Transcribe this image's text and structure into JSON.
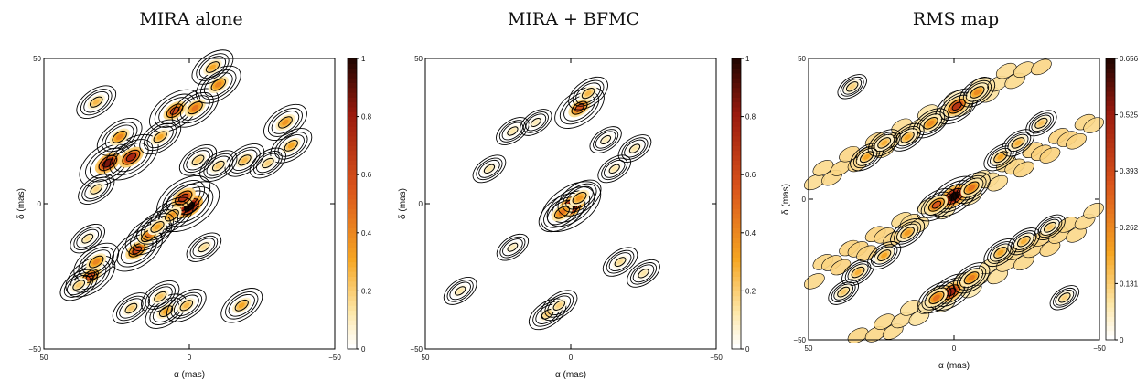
{
  "colors": {
    "low": "#ffffff",
    "mid1": "#fde7a8",
    "mid2": "#f6a623",
    "mid3": "#d9531b",
    "mid4": "#9a1a0e",
    "high": "#1a0400",
    "contour": "#000000"
  },
  "chart_data": [
    {
      "type": "heatmap",
      "title": "MIRA alone",
      "xlabel": "α (mas)",
      "ylabel": "δ (mas)",
      "xlim": [
        50,
        -50
      ],
      "ylim": [
        -50,
        50
      ],
      "xticks": [
        "50",
        "0",
        "−50"
      ],
      "yticks": [
        "−50",
        "0",
        "50"
      ],
      "colorbar": {
        "min": 0,
        "max": 1,
        "ticks": [
          "0",
          "0.2",
          "0.4",
          "0.6",
          "0.8",
          "1"
        ]
      },
      "peaks": [
        {
          "x": 0,
          "y": -1,
          "v": 1.0
        },
        {
          "x": 2,
          "y": 2,
          "v": 0.7
        },
        {
          "x": 28,
          "y": 14,
          "v": 0.85
        },
        {
          "x": 20,
          "y": 16,
          "v": 0.75
        },
        {
          "x": 18,
          "y": -16,
          "v": 0.6
        },
        {
          "x": 14,
          "y": -11,
          "v": 0.45
        },
        {
          "x": 34,
          "y": -25,
          "v": 0.55
        },
        {
          "x": 32,
          "y": -20,
          "v": 0.4
        },
        {
          "x": 5,
          "y": 32,
          "v": 0.6
        },
        {
          "x": -2,
          "y": 33,
          "v": 0.45
        },
        {
          "x": -10,
          "y": 41,
          "v": 0.4
        },
        {
          "x": -8,
          "y": 47,
          "v": 0.3
        },
        {
          "x": 24,
          "y": 23,
          "v": 0.4
        },
        {
          "x": 10,
          "y": 23,
          "v": 0.3
        },
        {
          "x": -33,
          "y": 28,
          "v": 0.35
        },
        {
          "x": -35,
          "y": 20,
          "v": 0.3
        },
        {
          "x": 6,
          "y": -4,
          "v": 0.35
        },
        {
          "x": 11,
          "y": -8,
          "v": 0.3
        },
        {
          "x": 32,
          "y": 35,
          "v": 0.25
        },
        {
          "x": 20,
          "y": -36,
          "v": 0.2
        },
        {
          "x": 8,
          "y": -37,
          "v": 0.3
        },
        {
          "x": 1,
          "y": -35,
          "v": 0.25
        },
        {
          "x": -18,
          "y": -35,
          "v": 0.3
        },
        {
          "x": 38,
          "y": -28,
          "v": 0.2
        },
        {
          "x": -19,
          "y": 15,
          "v": 0.25
        },
        {
          "x": -10,
          "y": 13,
          "v": 0.2
        },
        {
          "x": -3,
          "y": 15,
          "v": 0.2
        },
        {
          "x": -27,
          "y": 14,
          "v": 0.18
        },
        {
          "x": 32,
          "y": 5,
          "v": 0.18
        },
        {
          "x": 10,
          "y": -32,
          "v": 0.22
        },
        {
          "x": 35,
          "y": -12,
          "v": 0.15
        },
        {
          "x": -5,
          "y": -15,
          "v": 0.15
        }
      ]
    },
    {
      "type": "heatmap",
      "title": "MIRA + BFMC",
      "xlabel": "α (mas)",
      "ylabel": "δ (mas)",
      "xlim": [
        50,
        -50
      ],
      "ylim": [
        -50,
        50
      ],
      "xticks": [
        "50",
        "0",
        "−50"
      ],
      "yticks": [
        "−50",
        "0",
        "50"
      ],
      "colorbar": {
        "min": 0,
        "max": 1,
        "ticks": [
          "0",
          "0.2",
          "0.4",
          "0.6",
          "0.8",
          "1"
        ]
      },
      "peaks": [
        {
          "x": 0,
          "y": -1,
          "v": 1.0
        },
        {
          "x": 3,
          "y": -3,
          "v": 0.45
        },
        {
          "x": -3,
          "y": 2,
          "v": 0.35
        },
        {
          "x": -3,
          "y": 33,
          "v": 0.55
        },
        {
          "x": -6,
          "y": 38,
          "v": 0.25
        },
        {
          "x": 8,
          "y": -38,
          "v": 0.2
        },
        {
          "x": 4,
          "y": -35,
          "v": 0.18
        },
        {
          "x": 20,
          "y": 25,
          "v": 0.12
        },
        {
          "x": 28,
          "y": 12,
          "v": 0.12
        },
        {
          "x": -15,
          "y": 12,
          "v": 0.12
        },
        {
          "x": -22,
          "y": 19,
          "v": 0.12
        },
        {
          "x": -17,
          "y": -20,
          "v": 0.15
        },
        {
          "x": -25,
          "y": -24,
          "v": 0.12
        },
        {
          "x": 38,
          "y": -30,
          "v": 0.12
        },
        {
          "x": 20,
          "y": -15,
          "v": 0.1
        },
        {
          "x": 12,
          "y": 28,
          "v": 0.1
        },
        {
          "x": -12,
          "y": 22,
          "v": 0.1
        }
      ]
    },
    {
      "type": "heatmap",
      "title": "RMS map",
      "xlabel": "α (mas)",
      "ylabel": "δ (mas)",
      "xlim": [
        50,
        -50
      ],
      "ylim": [
        -50,
        50
      ],
      "xticks": [
        "50",
        "0",
        "−50"
      ],
      "yticks": [
        "−50",
        "0",
        "50"
      ],
      "colorbar": {
        "min": 0,
        "max": 0.656,
        "ticks": [
          "0",
          "0.131",
          "0.262",
          "0.393",
          "0.525",
          "0.656"
        ]
      },
      "peaks": [
        {
          "x": 0,
          "y": 1,
          "v": 0.656
        },
        {
          "x": 6,
          "y": -2,
          "v": 0.35
        },
        {
          "x": -6,
          "y": 4,
          "v": 0.3
        },
        {
          "x": 1,
          "y": -33,
          "v": 0.5
        },
        {
          "x": 6,
          "y": -35,
          "v": 0.3
        },
        {
          "x": -6,
          "y": -28,
          "v": 0.28
        },
        {
          "x": -1,
          "y": 33,
          "v": 0.45
        },
        {
          "x": -8,
          "y": 38,
          "v": 0.25
        },
        {
          "x": 8,
          "y": 27,
          "v": 0.25
        },
        {
          "x": 16,
          "y": 22,
          "v": 0.2
        },
        {
          "x": 30,
          "y": 15,
          "v": 0.2
        },
        {
          "x": 24,
          "y": 20,
          "v": 0.18
        },
        {
          "x": -16,
          "y": 15,
          "v": 0.2
        },
        {
          "x": -22,
          "y": 20,
          "v": 0.18
        },
        {
          "x": -30,
          "y": 27,
          "v": 0.15
        },
        {
          "x": 16,
          "y": -12,
          "v": 0.22
        },
        {
          "x": 24,
          "y": -20,
          "v": 0.2
        },
        {
          "x": 33,
          "y": -26,
          "v": 0.18
        },
        {
          "x": -16,
          "y": -19,
          "v": 0.2
        },
        {
          "x": -24,
          "y": -15,
          "v": 0.18
        },
        {
          "x": -33,
          "y": -10,
          "v": 0.14
        },
        {
          "x": 38,
          "y": -33,
          "v": 0.14
        },
        {
          "x": 35,
          "y": 40,
          "v": 0.12
        },
        {
          "x": -38,
          "y": -35,
          "v": 0.12
        }
      ]
    }
  ]
}
